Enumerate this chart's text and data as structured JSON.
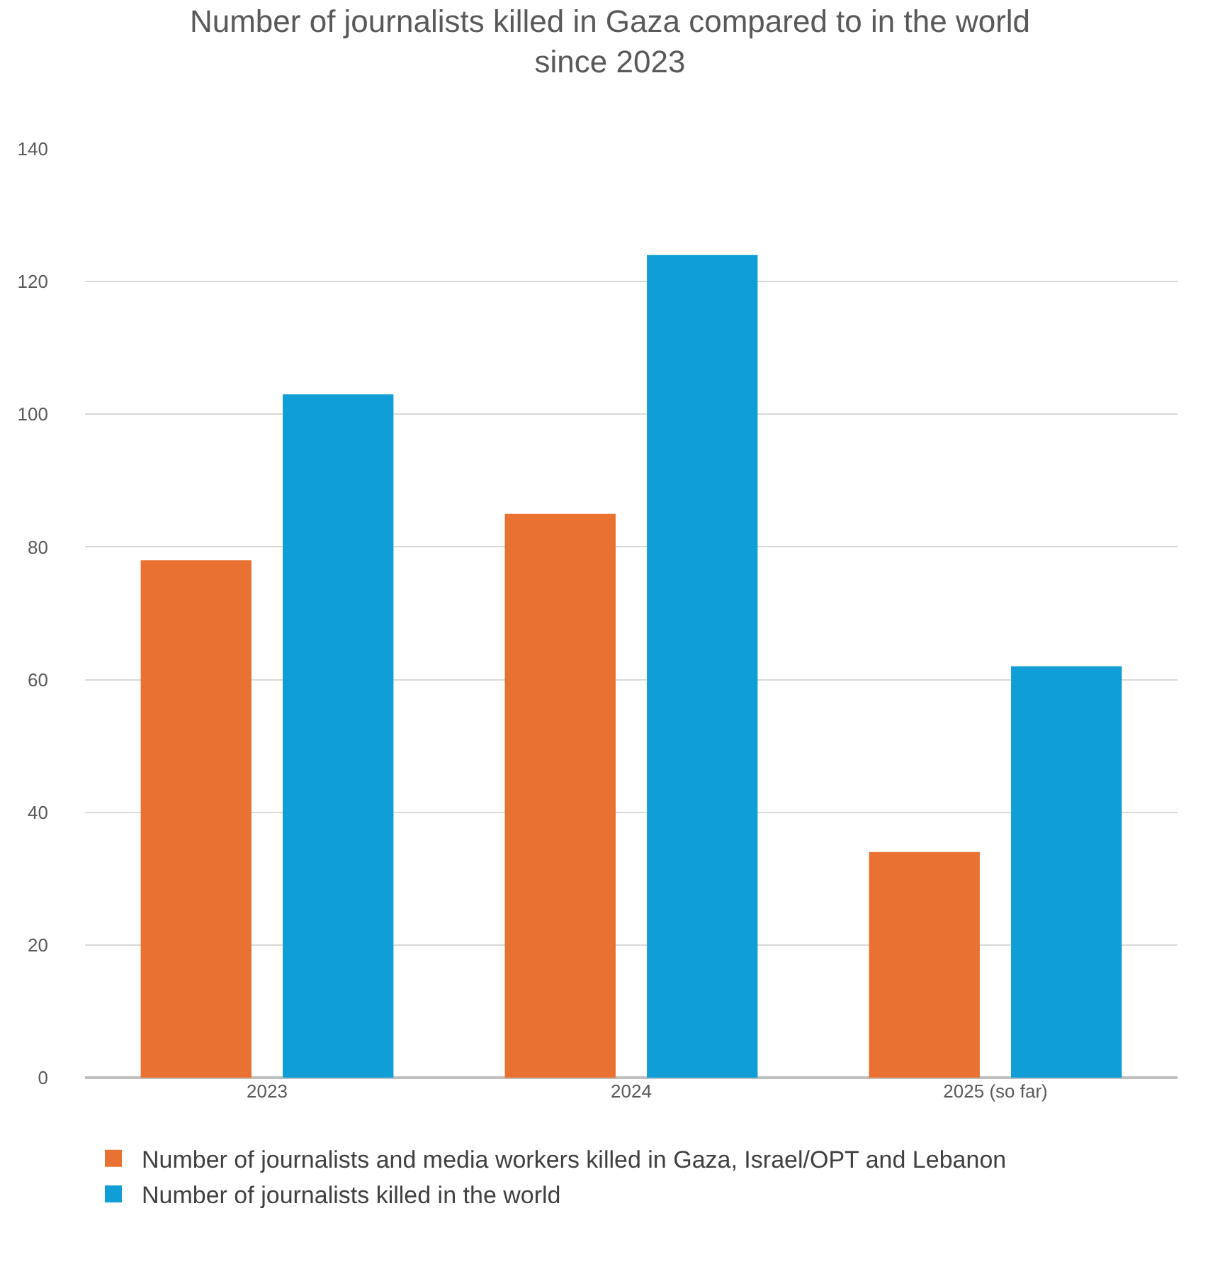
{
  "chart_data": {
    "type": "bar",
    "title": "Number of journalists killed in Gaza compared to in the world\nsince 2023",
    "categories": [
      "2023",
      "2024",
      "2025 (so far)"
    ],
    "series": [
      {
        "name": "Number of journalists and media workers killed in Gaza, Israel/OPT and Lebanon",
        "color": "#e97132",
        "values": [
          78,
          85,
          34
        ]
      },
      {
        "name": "Number of journalists killed in the world",
        "color": "#0f9ed5",
        "values": [
          103,
          124,
          62
        ]
      }
    ],
    "ylim": [
      0,
      140
    ],
    "yticks": [
      0,
      20,
      40,
      60,
      80,
      100,
      120,
      140
    ],
    "grid": "y",
    "legend": "bottom"
  }
}
